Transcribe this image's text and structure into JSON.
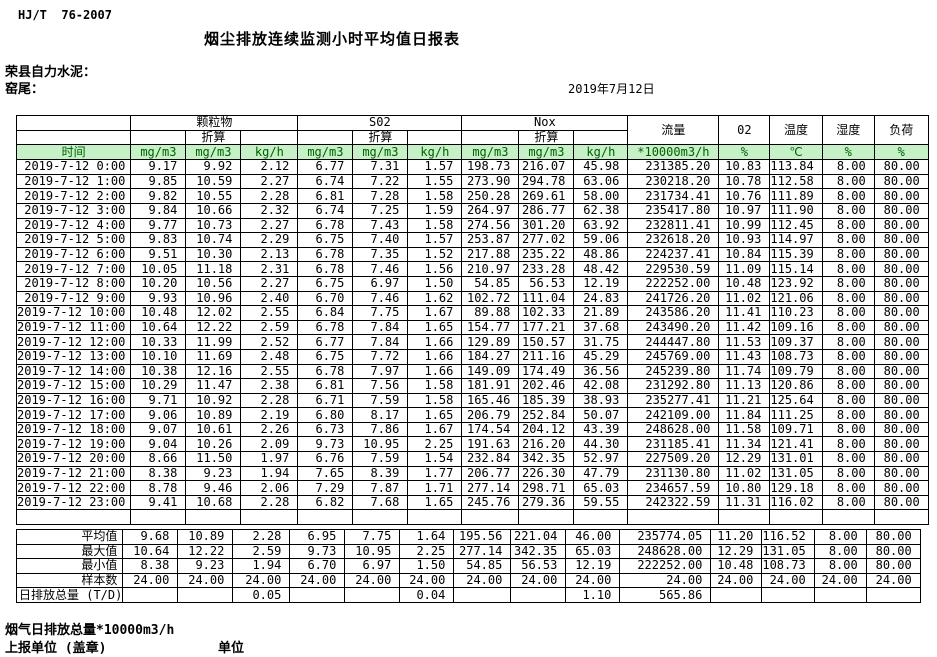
{
  "header": {
    "standard_code": "HJ/T  76-2007",
    "title": "烟尘排放连续监测小时平均值日报表",
    "company": "荣县自力水泥：",
    "location": "窑尾：",
    "date": "2019年7月12日"
  },
  "table": {
    "group_headers": {
      "time": "时间",
      "particulate": "颗粒物",
      "so2": "S02",
      "nox": "Nox",
      "flow": "流量",
      "o2": "02",
      "temp": "温度",
      "humidity": "湿度",
      "load": "负荷"
    },
    "conversion_label": "折算",
    "units": [
      "mg/m3",
      "mg/m3",
      "kg/h",
      "mg/m3",
      "mg/m3",
      "kg/h",
      "mg/m3",
      "mg/m3",
      "kg/h",
      "*10000m3/h",
      "%",
      "℃",
      "%",
      "%"
    ],
    "rows": [
      {
        "time": "2019-7-12 0:00",
        "values": [
          "9.17",
          "9.92",
          "2.12",
          "6.77",
          "7.31",
          "1.57",
          "198.73",
          "216.07",
          "45.98",
          "231385.20",
          "10.83",
          "113.84",
          "8.00",
          "80.00"
        ]
      },
      {
        "time": "2019-7-12 1:00",
        "values": [
          "9.85",
          "10.59",
          "2.27",
          "6.74",
          "7.22",
          "1.55",
          "273.90",
          "294.78",
          "63.06",
          "230218.20",
          "10.78",
          "112.58",
          "8.00",
          "80.00"
        ]
      },
      {
        "time": "2019-7-12 2:00",
        "values": [
          "9.82",
          "10.55",
          "2.28",
          "6.81",
          "7.28",
          "1.58",
          "250.28",
          "269.61",
          "58.00",
          "231734.41",
          "10.76",
          "111.89",
          "8.00",
          "80.00"
        ]
      },
      {
        "time": "2019-7-12 3:00",
        "values": [
          "9.84",
          "10.66",
          "2.32",
          "6.74",
          "7.25",
          "1.59",
          "264.97",
          "286.77",
          "62.38",
          "235417.80",
          "10.97",
          "111.90",
          "8.00",
          "80.00"
        ]
      },
      {
        "time": "2019-7-12 4:00",
        "values": [
          "9.77",
          "10.73",
          "2.27",
          "6.78",
          "7.43",
          "1.58",
          "274.56",
          "301.20",
          "63.92",
          "232811.41",
          "10.99",
          "112.45",
          "8.00",
          "80.00"
        ]
      },
      {
        "time": "2019-7-12 5:00",
        "values": [
          "9.83",
          "10.74",
          "2.29",
          "6.75",
          "7.40",
          "1.57",
          "253.87",
          "277.02",
          "59.06",
          "232618.20",
          "10.93",
          "114.97",
          "8.00",
          "80.00"
        ]
      },
      {
        "time": "2019-7-12 6:00",
        "values": [
          "9.51",
          "10.30",
          "2.13",
          "6.78",
          "7.35",
          "1.52",
          "217.88",
          "235.22",
          "48.86",
          "224237.41",
          "10.84",
          "115.39",
          "8.00",
          "80.00"
        ]
      },
      {
        "time": "2019-7-12 7:00",
        "values": [
          "10.05",
          "11.18",
          "2.31",
          "6.78",
          "7.46",
          "1.56",
          "210.97",
          "233.28",
          "48.42",
          "229530.59",
          "11.09",
          "115.14",
          "8.00",
          "80.00"
        ]
      },
      {
        "time": "2019-7-12 8:00",
        "values": [
          "10.20",
          "10.56",
          "2.27",
          "6.75",
          "6.97",
          "1.50",
          "54.85",
          "56.53",
          "12.19",
          "222252.00",
          "10.48",
          "123.92",
          "8.00",
          "80.00"
        ]
      },
      {
        "time": "2019-7-12 9:00",
        "values": [
          "9.93",
          "10.96",
          "2.40",
          "6.70",
          "7.46",
          "1.62",
          "102.72",
          "111.04",
          "24.83",
          "241726.20",
          "11.02",
          "121.06",
          "8.00",
          "80.00"
        ]
      },
      {
        "time": "2019-7-12 10:00",
        "values": [
          "10.48",
          "12.02",
          "2.55",
          "6.84",
          "7.75",
          "1.67",
          "89.88",
          "102.33",
          "21.89",
          "243586.20",
          "11.41",
          "110.23",
          "8.00",
          "80.00"
        ]
      },
      {
        "time": "2019-7-12 11:00",
        "values": [
          "10.64",
          "12.22",
          "2.59",
          "6.78",
          "7.84",
          "1.65",
          "154.77",
          "177.21",
          "37.68",
          "243490.20",
          "11.42",
          "109.16",
          "8.00",
          "80.00"
        ]
      },
      {
        "time": "2019-7-12 12:00",
        "values": [
          "10.33",
          "11.99",
          "2.52",
          "6.77",
          "7.84",
          "1.66",
          "129.89",
          "150.57",
          "31.75",
          "244447.80",
          "11.53",
          "109.37",
          "8.00",
          "80.00"
        ]
      },
      {
        "time": "2019-7-12 13:00",
        "values": [
          "10.10",
          "11.69",
          "2.48",
          "6.75",
          "7.72",
          "1.66",
          "184.27",
          "211.16",
          "45.29",
          "245769.00",
          "11.43",
          "108.73",
          "8.00",
          "80.00"
        ]
      },
      {
        "time": "2019-7-12 14:00",
        "values": [
          "10.38",
          "12.16",
          "2.55",
          "6.78",
          "7.97",
          "1.66",
          "149.09",
          "174.49",
          "36.56",
          "245239.80",
          "11.74",
          "109.79",
          "8.00",
          "80.00"
        ]
      },
      {
        "time": "2019-7-12 15:00",
        "values": [
          "10.29",
          "11.47",
          "2.38",
          "6.81",
          "7.56",
          "1.58",
          "181.91",
          "202.46",
          "42.08",
          "231292.80",
          "11.13",
          "120.86",
          "8.00",
          "80.00"
        ]
      },
      {
        "time": "2019-7-12 16:00",
        "values": [
          "9.71",
          "10.92",
          "2.28",
          "6.71",
          "7.59",
          "1.58",
          "165.46",
          "185.39",
          "38.93",
          "235277.41",
          "11.21",
          "125.64",
          "8.00",
          "80.00"
        ]
      },
      {
        "time": "2019-7-12 17:00",
        "values": [
          "9.06",
          "10.89",
          "2.19",
          "6.80",
          "8.17",
          "1.65",
          "206.79",
          "252.84",
          "50.07",
          "242109.00",
          "11.84",
          "111.25",
          "8.00",
          "80.00"
        ]
      },
      {
        "time": "2019-7-12 18:00",
        "values": [
          "9.07",
          "10.61",
          "2.26",
          "6.73",
          "7.86",
          "1.67",
          "174.54",
          "204.12",
          "43.39",
          "248628.00",
          "11.58",
          "109.71",
          "8.00",
          "80.00"
        ]
      },
      {
        "time": "2019-7-12 19:00",
        "values": [
          "9.04",
          "10.26",
          "2.09",
          "9.73",
          "10.95",
          "2.25",
          "191.63",
          "216.20",
          "44.30",
          "231185.41",
          "11.34",
          "121.41",
          "8.00",
          "80.00"
        ]
      },
      {
        "time": "2019-7-12 20:00",
        "values": [
          "8.66",
          "11.50",
          "1.97",
          "6.76",
          "7.59",
          "1.54",
          "232.84",
          "342.35",
          "52.97",
          "227509.20",
          "12.29",
          "131.01",
          "8.00",
          "80.00"
        ]
      },
      {
        "time": "2019-7-12 21:00",
        "values": [
          "8.38",
          "9.23",
          "1.94",
          "7.65",
          "8.39",
          "1.77",
          "206.77",
          "226.30",
          "47.79",
          "231130.80",
          "11.02",
          "131.05",
          "8.00",
          "80.00"
        ]
      },
      {
        "time": "2019-7-12 22:00",
        "values": [
          "8.78",
          "9.46",
          "2.06",
          "7.29",
          "7.87",
          "1.71",
          "277.14",
          "298.71",
          "65.03",
          "234657.59",
          "10.80",
          "129.18",
          "8.00",
          "80.00"
        ]
      },
      {
        "time": "2019-7-12 23:00",
        "values": [
          "9.41",
          "10.68",
          "2.28",
          "6.82",
          "7.68",
          "1.65",
          "245.76",
          "279.36",
          "59.55",
          "242322.59",
          "11.31",
          "116.02",
          "8.00",
          "80.00"
        ]
      }
    ],
    "summary": [
      {
        "label": "平均值",
        "values": [
          "9.68",
          "10.89",
          "2.28",
          "6.95",
          "7.75",
          "1.64",
          "195.56",
          "221.04",
          "46.00",
          "235774.05",
          "11.20",
          "116.52",
          "8.00",
          "80.00"
        ]
      },
      {
        "label": "最大值",
        "values": [
          "10.64",
          "12.22",
          "2.59",
          "9.73",
          "10.95",
          "2.25",
          "277.14",
          "342.35",
          "65.03",
          "248628.00",
          "12.29",
          "131.05",
          "8.00",
          "80.00"
        ]
      },
      {
        "label": "最小值",
        "values": [
          "8.38",
          "9.23",
          "1.94",
          "6.70",
          "6.97",
          "1.50",
          "54.85",
          "56.53",
          "12.19",
          "222252.00",
          "10.48",
          "108.73",
          "8.00",
          "80.00"
        ]
      },
      {
        "label": "样本数",
        "values": [
          "24.00",
          "24.00",
          "24.00",
          "24.00",
          "24.00",
          "24.00",
          "24.00",
          "24.00",
          "24.00",
          "24.00",
          "24.00",
          "24.00",
          "24.00",
          "24.00"
        ]
      },
      {
        "label": "日排放总量 (T/D)",
        "values": [
          "",
          "",
          "0.05",
          "",
          "",
          "0.04",
          "",
          "",
          "1.10",
          "565.86",
          "",
          "",
          "",
          ""
        ]
      }
    ]
  },
  "footer": {
    "note": "烟气日排放总量*10000m3/h",
    "report_unit": "上报单位 (盖章)",
    "unit": "单位"
  }
}
